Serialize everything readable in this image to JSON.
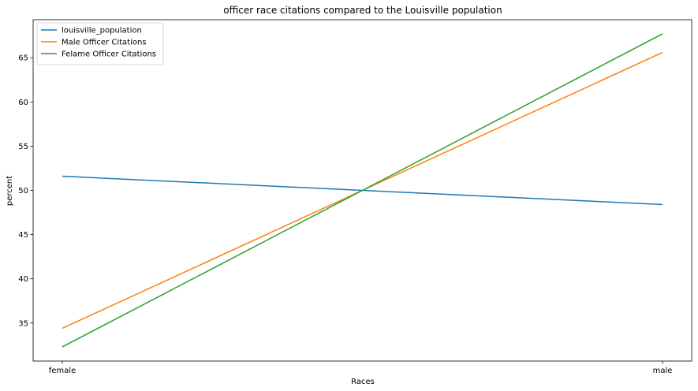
{
  "chart_data": {
    "type": "line",
    "title": "officer race citations compared to the Louisville population",
    "xlabel": "Races",
    "ylabel": "percent",
    "categories": [
      "female",
      "male"
    ],
    "ylim": [
      30.7,
      69.3
    ],
    "yticks": [
      35,
      40,
      45,
      50,
      55,
      60,
      65
    ],
    "grid": false,
    "legend_position": "upper left",
    "series": [
      {
        "name": "louisville_population",
        "color": "#1f77b4",
        "values": [
          51.6,
          48.4
        ]
      },
      {
        "name": "Male Officer Citations",
        "color": "#ff7f0e",
        "values": [
          34.4,
          65.6
        ]
      },
      {
        "name": "Felame Officer Citations",
        "color": "#2ca02c",
        "values": [
          32.3,
          67.7
        ]
      }
    ]
  }
}
